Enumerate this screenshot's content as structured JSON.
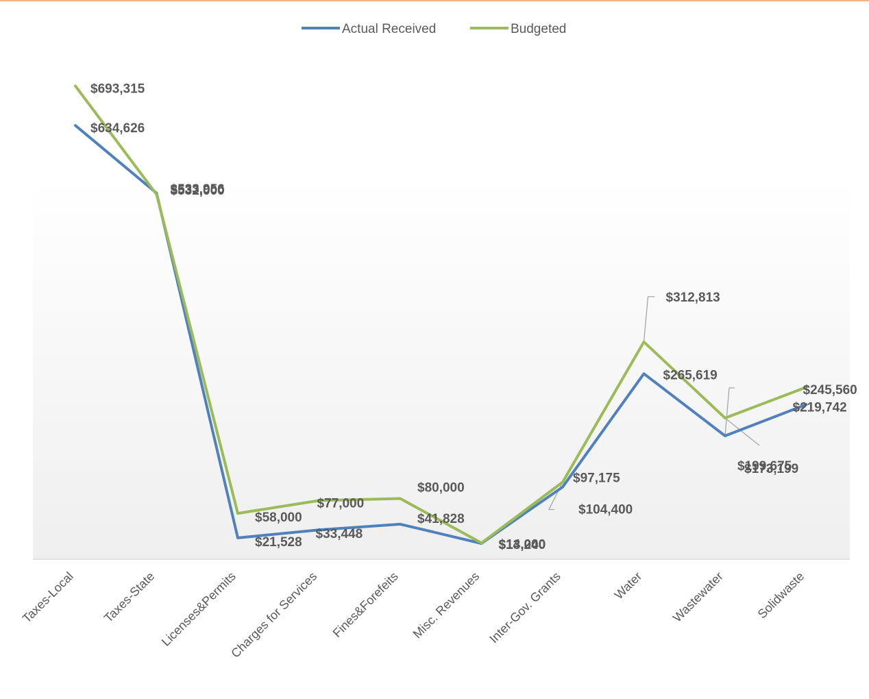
{
  "chart_data": {
    "type": "line",
    "title": "",
    "xlabel": "",
    "ylabel": "",
    "ylim": [
      0,
      760000
    ],
    "grid": false,
    "legend_position": "top-center",
    "categories": [
      "Taxes-Local",
      "Taxes-State",
      "Licenses&Permits",
      "Charges for Services",
      "Fines&Forefeits",
      "Misc. Revenues",
      "Inter-Gov. Grants",
      "Water",
      "Wastewater",
      "Solidwaste"
    ],
    "series": [
      {
        "name": "Actual Received",
        "color": "#4f81bd",
        "values": [
          634626,
          533956,
          21528,
          33448,
          41828,
          13240,
          97175,
          265619,
          173199,
          219742
        ],
        "labels": [
          "$634,626",
          "$533,956",
          "$21,528",
          "$33,448",
          "$41,828",
          "$13,240",
          "$97,175",
          "$265,619",
          "$173,199",
          "$219,742"
        ]
      },
      {
        "name": "Budgeted",
        "color": "#9bbb59",
        "values": [
          693315,
          532000,
          58000,
          77000,
          80000,
          14000,
          104400,
          312813,
          199675,
          245560
        ],
        "labels": [
          "$693,315",
          "$532,000",
          "$58,000",
          "$77,000",
          "$80,000",
          "$14,000",
          "$104,400",
          "$312,813",
          "$199,675",
          "$245,560"
        ]
      }
    ],
    "colors": {
      "plot_gradient_top": "#ffffff",
      "plot_gradient_bottom": "#f0f0f0",
      "axis": "#d9d9d9",
      "text": "#595959",
      "top_border": "#f4b183"
    }
  }
}
